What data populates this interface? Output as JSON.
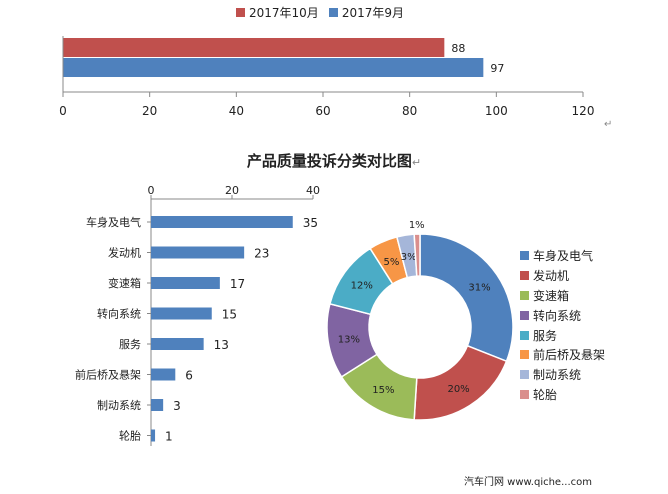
{
  "chart_data": [
    {
      "type": "bar",
      "orientation": "horizontal",
      "series": [
        {
          "name": "2017年10月",
          "values": [
            88
          ],
          "color": "#C0504D"
        },
        {
          "name": "2017年9月",
          "values": [
            97
          ],
          "color": "#4F81BD"
        }
      ],
      "xlim": [
        0,
        120
      ],
      "xticks": [
        "0",
        "20",
        "40",
        "60",
        "80",
        "100",
        "120"
      ],
      "legend": "top"
    },
    {
      "type": "bar",
      "orientation": "horizontal",
      "categories": [
        "车身及电气",
        "发动机",
        "变速箱",
        "转向系统",
        "服务",
        "前后桥及悬架",
        "制动系统",
        "轮胎"
      ],
      "values": [
        35,
        23,
        17,
        15,
        13,
        6,
        3,
        1
      ],
      "xlim": [
        0,
        40
      ],
      "xticks": [
        "0",
        "20",
        "40"
      ],
      "color": "#4F81BD"
    },
    {
      "type": "pie",
      "donut": true,
      "title": "产品质量投诉分类对比图",
      "categories": [
        "车身及电气",
        "发动机",
        "变速箱",
        "转向系统",
        "服务",
        "前后桥及悬架",
        "制动系统",
        "轮胎"
      ],
      "values": [
        31,
        20,
        15,
        13,
        12,
        5,
        3,
        1
      ],
      "labels": [
        "31%",
        "20%",
        "15%",
        "13%",
        "12%",
        "5%",
        "3%",
        "1%"
      ],
      "colors": [
        "#4F81BD",
        "#C0504D",
        "#9BBB59",
        "#8064A2",
        "#4BACC6",
        "#F79646",
        "#A5B6D9",
        "#DA8F8D"
      ],
      "legend": "right"
    }
  ],
  "chart_title": "产品质量投诉分类对比图",
  "para_mark": "↵",
  "footer": "汽车门网 www.qiche...com"
}
